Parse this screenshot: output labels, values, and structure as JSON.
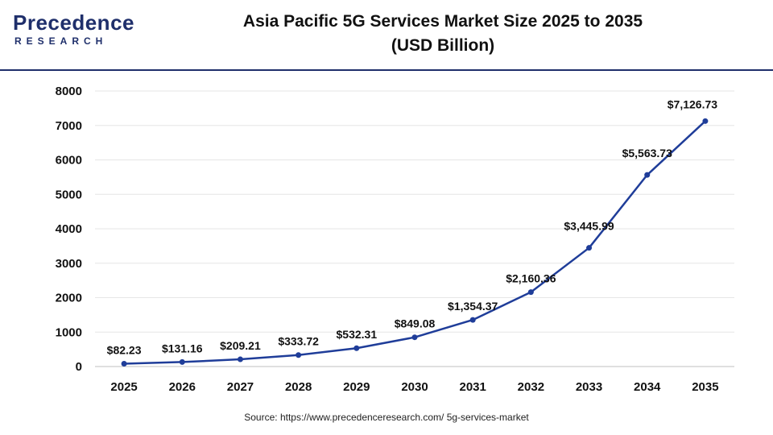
{
  "header": {
    "logo_text": "Precedence",
    "logo_sub": "RESEARCH",
    "title_line1": "Asia Pacific 5G Services Market Size 2025 to 2035",
    "title_line2": "(USD Billion)"
  },
  "source": "Source: https://www.precedenceresearch.com/ 5g-services-market",
  "colors": {
    "line": "#1f3d99",
    "brand": "#1f2f6b",
    "grid": "#e6e6e6"
  },
  "chart_data": {
    "type": "line",
    "title": "Asia Pacific 5G Services Market Size 2025 to 2035 (USD Billion)",
    "categories": [
      "2025",
      "2026",
      "2027",
      "2028",
      "2029",
      "2030",
      "2031",
      "2032",
      "2033",
      "2034",
      "2035"
    ],
    "series": [
      {
        "values": [
          82.23,
          131.16,
          209.21,
          333.72,
          532.31,
          849.08,
          1354.37,
          2160.36,
          3445.99,
          5563.73,
          7126.73
        ],
        "labels": [
          "$82.23",
          "$131.16",
          "$209.21",
          "$333.72",
          "$532.31",
          "$849.08",
          "$1,354.37",
          "$2,160.36",
          "$3,445.99",
          "$5,563.73",
          "$7,126.73"
        ]
      }
    ],
    "ylim": [
      0,
      8000
    ],
    "yticks": [
      0,
      1000,
      2000,
      3000,
      4000,
      5000,
      6000,
      7000,
      8000
    ],
    "grid": "horizontal",
    "legend": "none"
  }
}
